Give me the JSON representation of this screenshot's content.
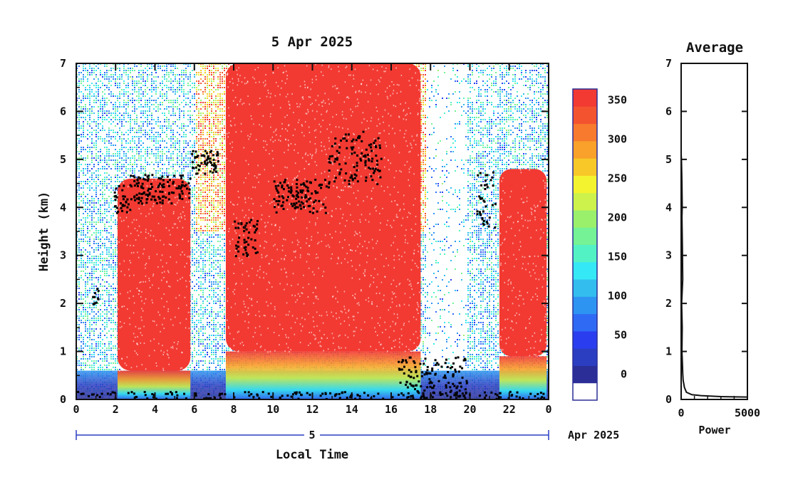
{
  "chart_data": [
    {
      "type": "heatmap",
      "title": "5 Apr 2025",
      "xlabel": "Local Time",
      "ylabel": "Height (km)",
      "xlim": [
        0,
        24
      ],
      "ylim": [
        0,
        7
      ],
      "x_ticks": [
        "0",
        "2",
        "4",
        "6",
        "8",
        "10",
        "12",
        "14",
        "16",
        "18",
        "20",
        "22",
        "0"
      ],
      "y_ticks": [
        "0",
        "1",
        "2",
        "3",
        "4",
        "5",
        "6",
        "7"
      ],
      "date_bar": {
        "day": "5",
        "month_year": "Apr 2025"
      },
      "colorbar": {
        "ticks": [
          "0",
          "50",
          "100",
          "150",
          "200",
          "250",
          "300",
          "350"
        ],
        "range": [
          0,
          375
        ],
        "colors": [
          "#ffffff",
          "#2a2e96",
          "#2b3ec2",
          "#2a3ef0",
          "#2f6af5",
          "#2e94f2",
          "#33bdef",
          "#35e8f5",
          "#53f2c4",
          "#74f295",
          "#9bf06b",
          "#cdf24b",
          "#f4f32f",
          "#f8c829",
          "#f9a12a",
          "#f77a2e",
          "#f4532f",
          "#f23a32"
        ]
      },
      "layers": [
        {
          "name": "boundary-layer",
          "from": 0,
          "to": 24,
          "top": 0.6,
          "value": 40
        },
        {
          "name": "cloud-1",
          "from": 2.1,
          "to": 5.8,
          "bottom": 0.6,
          "top": 4.6,
          "value": 375
        },
        {
          "name": "cloud-2",
          "from": 7.6,
          "to": 17.5,
          "bottom": 1.0,
          "top": 7.0,
          "value": 375
        },
        {
          "name": "cloud-3",
          "from": 21.5,
          "to": 23.9,
          "bottom": 0.9,
          "top": 4.8,
          "value": 375
        }
      ]
    },
    {
      "type": "line",
      "title": "Average",
      "xlabel": "Power",
      "ylabel": "",
      "xlim": [
        0,
        5000
      ],
      "ylim": [
        0,
        7
      ],
      "x_ticks": [
        "0",
        "5000"
      ],
      "y_ticks": [
        "0",
        "1",
        "2",
        "3",
        "4",
        "5",
        "6",
        "7"
      ],
      "x": [
        5000,
        3000,
        1500,
        800,
        400,
        250,
        150,
        120,
        100,
        60,
        80,
        40,
        120,
        90,
        60,
        80,
        60,
        40,
        20,
        0
      ],
      "y": [
        0.05,
        0.06,
        0.08,
        0.1,
        0.15,
        0.25,
        0.4,
        0.55,
        0.7,
        1.0,
        1.5,
        2.0,
        2.5,
        3.2,
        3.8,
        4.0,
        4.5,
        4.8,
        5.0,
        5.1
      ]
    }
  ]
}
